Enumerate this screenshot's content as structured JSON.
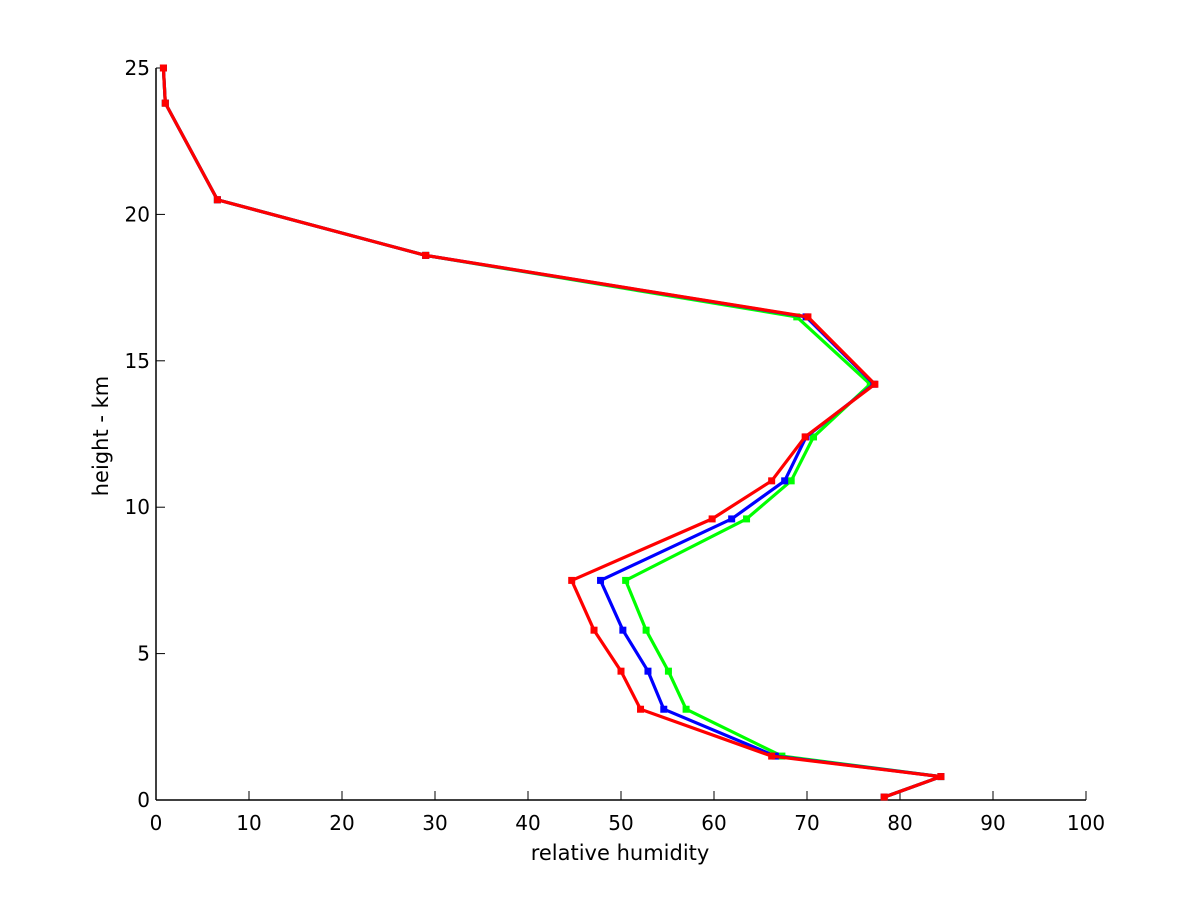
{
  "chart_data": {
    "type": "line",
    "title": "",
    "xlabel": "relative humidity",
    "ylabel": "height - km",
    "xlim": [
      0,
      100
    ],
    "ylim": [
      0,
      25
    ],
    "xticks": [
      0,
      10,
      20,
      30,
      40,
      50,
      60,
      70,
      80,
      90,
      100
    ],
    "yticks": [
      0,
      5,
      10,
      15,
      20,
      25
    ],
    "grid": false,
    "legend": "none",
    "series": [
      {
        "color": "#00ff00",
        "x": [
          78.3,
          84.4,
          67.3,
          57.0,
          55.1,
          52.7,
          50.5,
          63.5,
          68.3,
          70.7,
          76.8,
          68.9,
          29.0,
          6.6,
          1.0,
          0.8
        ],
        "y": [
          0.1,
          0.8,
          1.5,
          3.1,
          4.4,
          5.8,
          7.5,
          9.6,
          10.9,
          12.4,
          14.2,
          16.5,
          18.6,
          20.5,
          23.8,
          25.0
        ]
      },
      {
        "color": "#0000ff",
        "x": [
          78.3,
          84.4,
          66.6,
          54.6,
          52.9,
          50.2,
          47.8,
          61.9,
          67.6,
          69.9,
          77.2,
          69.9,
          29.0,
          6.6,
          1.0,
          0.8
        ],
        "y": [
          0.1,
          0.8,
          1.5,
          3.1,
          4.4,
          5.8,
          7.5,
          9.6,
          10.9,
          12.4,
          14.2,
          16.5,
          18.6,
          20.5,
          23.8,
          25.0
        ]
      },
      {
        "color": "#ff0000",
        "x": [
          78.3,
          84.4,
          66.2,
          52.1,
          50.0,
          47.1,
          44.7,
          59.8,
          66.2,
          69.8,
          77.3,
          70.1,
          29.0,
          6.6,
          1.0,
          0.8
        ],
        "y": [
          0.1,
          0.8,
          1.5,
          3.1,
          4.4,
          5.8,
          7.5,
          9.6,
          10.9,
          12.4,
          14.2,
          16.5,
          18.6,
          20.5,
          23.8,
          25.0
        ]
      }
    ]
  }
}
